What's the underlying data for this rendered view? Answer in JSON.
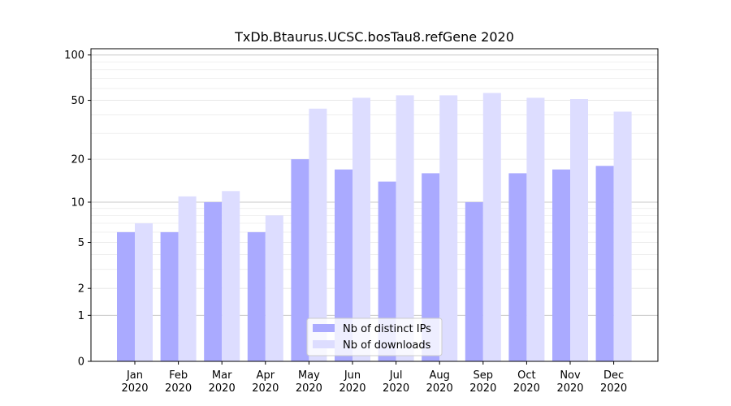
{
  "chart_data": {
    "type": "bar",
    "title": "TxDb.Btaurus.UCSC.bosTau8.refGene 2020",
    "xlabel": "",
    "ylabel": "",
    "categories": [
      [
        "Jan",
        "2020"
      ],
      [
        "Feb",
        "2020"
      ],
      [
        "Mar",
        "2020"
      ],
      [
        "Apr",
        "2020"
      ],
      [
        "May",
        "2020"
      ],
      [
        "Jun",
        "2020"
      ],
      [
        "Jul",
        "2020"
      ],
      [
        "Aug",
        "2020"
      ],
      [
        "Sep",
        "2020"
      ],
      [
        "Oct",
        "2020"
      ],
      [
        "Nov",
        "2020"
      ],
      [
        "Dec",
        "2020"
      ]
    ],
    "series": [
      {
        "name": "Nb of distinct IPs",
        "color": "#aaaaff",
        "values": [
          6,
          6,
          10,
          6,
          20,
          17,
          14,
          16,
          10,
          16,
          17,
          18
        ]
      },
      {
        "name": "Nb of downloads",
        "color": "#ddddff",
        "values": [
          7,
          11,
          12,
          8,
          44,
          52,
          54,
          54,
          56,
          52,
          51,
          42
        ]
      }
    ],
    "y_scale": "log(1+y)",
    "ylim": [
      0,
      110
    ],
    "yticks": [
      0,
      1,
      2,
      5,
      10,
      20,
      50,
      100
    ],
    "grid": true,
    "legend": "bottom-center"
  }
}
